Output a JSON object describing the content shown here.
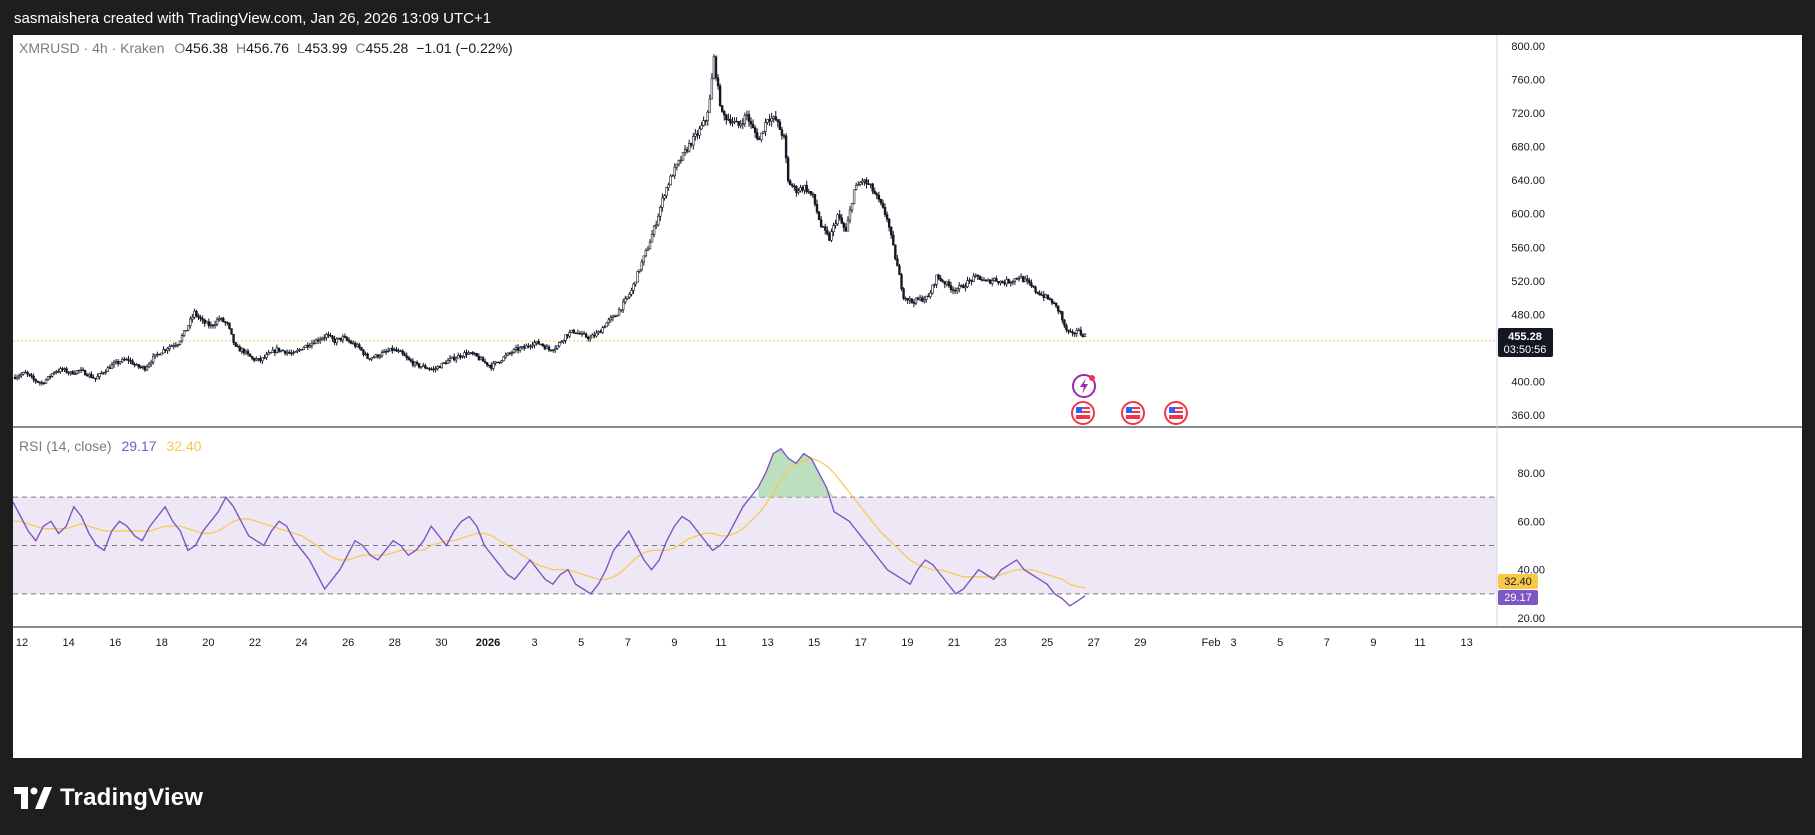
{
  "header": {
    "caption": "sasmaishera created with TradingView.com, Jan 26, 2026 13:09 UTC+1"
  },
  "legend": {
    "symbol": "XMRUSD · 4h · Kraken",
    "o_label": "O",
    "o_value": "456.38",
    "h_label": "H",
    "h_value": "456.76",
    "l_label": "L",
    "l_value": "453.99",
    "c_label": "C",
    "c_value": "455.28",
    "change": "−1.01 (−0.22%)"
  },
  "rsi_legend": {
    "label": "RSI (14, close)",
    "rsi_value": "29.17",
    "ma_value": "32.40"
  },
  "price_badge": {
    "price": "455.28",
    "countdown": "03:50:56"
  },
  "rsi_badges": {
    "ma": "32.40",
    "rsi": "29.17"
  },
  "footer": {
    "brand": "TradingView"
  },
  "colors": {
    "up": "#131722",
    "down": "#131722",
    "rsi_line": "#7e57c2",
    "rsi_ma": "#f7c948",
    "band_fill": "#ede7f6",
    "overbought_fill": "#a5d6a7",
    "price_line": "#f7c948"
  },
  "chart_data": [
    {
      "type": "candlestick",
      "symbol": "XMRUSD",
      "interval": "4h",
      "exchange": "Kraken",
      "y_axis": {
        "ticks": [
          "800.00",
          "760.00",
          "720.00",
          "680.00",
          "640.00",
          "600.00",
          "560.00",
          "520.00",
          "480.00",
          "400.00",
          "360.00"
        ],
        "ylim": [
          350,
          810
        ]
      },
      "x_axis": {
        "ticks": [
          "12",
          "14",
          "16",
          "18",
          "20",
          "22",
          "24",
          "26",
          "28",
          "30",
          "2026",
          "3",
          "5",
          "7",
          "9",
          "11",
          "13",
          "15",
          "17",
          "19",
          "21",
          "23",
          "25",
          "27",
          "29",
          "Feb",
          "3",
          "5",
          "7",
          "9",
          "11",
          "13"
        ]
      },
      "close_path": [
        [
          0,
          405
        ],
        [
          6,
          410
        ],
        [
          10,
          402
        ],
        [
          14,
          398
        ],
        [
          17,
          404
        ],
        [
          20,
          412
        ],
        [
          24,
          414
        ],
        [
          28,
          410
        ],
        [
          32,
          413
        ],
        [
          36,
          409
        ],
        [
          40,
          403
        ],
        [
          44,
          412
        ],
        [
          48,
          419
        ],
        [
          52,
          424
        ],
        [
          56,
          426
        ],
        [
          60,
          418
        ],
        [
          64,
          416
        ],
        [
          68,
          428
        ],
        [
          72,
          436
        ],
        [
          76,
          442
        ],
        [
          80,
          446
        ],
        [
          84,
          462
        ],
        [
          88,
          482
        ],
        [
          92,
          471
        ],
        [
          96,
          466
        ],
        [
          100,
          475
        ],
        [
          104,
          468
        ],
        [
          108,
          440
        ],
        [
          112,
          436
        ],
        [
          116,
          427
        ],
        [
          120,
          425
        ],
        [
          124,
          432
        ],
        [
          128,
          438
        ],
        [
          132,
          436
        ],
        [
          136,
          432
        ],
        [
          140,
          440
        ],
        [
          144,
          445
        ],
        [
          148,
          450
        ],
        [
          152,
          455
        ],
        [
          156,
          448
        ],
        [
          160,
          452
        ],
        [
          164,
          446
        ],
        [
          168,
          440
        ],
        [
          172,
          428
        ],
        [
          176,
          430
        ],
        [
          180,
          434
        ],
        [
          184,
          438
        ],
        [
          188,
          434
        ],
        [
          192,
          425
        ],
        [
          196,
          419
        ],
        [
          200,
          417
        ],
        [
          204,
          414
        ],
        [
          208,
          420
        ],
        [
          212,
          426
        ],
        [
          216,
          430
        ],
        [
          220,
          434
        ],
        [
          224,
          431
        ],
        [
          228,
          424
        ],
        [
          232,
          418
        ],
        [
          236,
          425
        ],
        [
          240,
          432
        ],
        [
          244,
          438
        ],
        [
          248,
          440
        ],
        [
          252,
          446
        ],
        [
          256,
          445
        ],
        [
          260,
          438
        ],
        [
          264,
          442
        ],
        [
          268,
          455
        ],
        [
          272,
          460
        ],
        [
          276,
          455
        ],
        [
          280,
          452
        ],
        [
          284,
          458
        ],
        [
          288,
          470
        ],
        [
          292,
          478
        ],
        [
          296,
          492
        ],
        [
          300,
          508
        ],
        [
          304,
          535
        ],
        [
          308,
          560
        ],
        [
          312,
          590
        ],
        [
          316,
          625
        ],
        [
          320,
          648
        ],
        [
          324,
          665
        ],
        [
          328,
          682
        ],
        [
          332,
          695
        ],
        [
          336,
          712
        ],
        [
          338,
          735
        ],
        [
          340,
          785
        ],
        [
          342,
          748
        ],
        [
          344,
          718
        ],
        [
          348,
          712
        ],
        [
          352,
          705
        ],
        [
          356,
          718
        ],
        [
          358,
          705
        ],
        [
          362,
          688
        ],
        [
          366,
          715
        ],
        [
          370,
          712
        ],
        [
          374,
          690
        ],
        [
          376,
          638
        ],
        [
          380,
          628
        ],
        [
          384,
          632
        ],
        [
          388,
          620
        ],
        [
          392,
          585
        ],
        [
          396,
          570
        ],
        [
          400,
          598
        ],
        [
          404,
          578
        ],
        [
          408,
          628
        ],
        [
          412,
          640
        ],
        [
          416,
          632
        ],
        [
          420,
          615
        ],
        [
          424,
          595
        ],
        [
          428,
          548
        ],
        [
          432,
          502
        ],
        [
          436,
          495
        ],
        [
          440,
          498
        ],
        [
          444,
          500
        ],
        [
          448,
          525
        ],
        [
          452,
          518
        ],
        [
          456,
          510
        ],
        [
          460,
          512
        ],
        [
          464,
          520
        ],
        [
          468,
          525
        ],
        [
          472,
          518
        ],
        [
          476,
          522
        ],
        [
          480,
          518
        ],
        [
          484,
          520
        ],
        [
          488,
          525
        ],
        [
          492,
          518
        ],
        [
          496,
          508
        ],
        [
          500,
          502
        ],
        [
          504,
          495
        ],
        [
          508,
          482
        ],
        [
          510,
          465
        ],
        [
          512,
          458
        ],
        [
          514,
          455
        ],
        [
          516,
          462
        ],
        [
          518,
          457
        ],
        [
          520,
          455.28
        ]
      ]
    },
    {
      "type": "line",
      "name": "RSI (14, close)",
      "ylim": [
        15,
        92
      ],
      "y_axis": {
        "ticks": [
          "80.00",
          "60.00",
          "40.00",
          "20.00"
        ]
      },
      "bands": [
        70,
        50,
        30
      ],
      "series": [
        {
          "name": "RSI",
          "values": [
            68,
            62,
            56,
            52,
            58,
            60,
            55,
            58,
            66,
            62,
            55,
            50,
            48,
            56,
            60,
            58,
            54,
            52,
            58,
            62,
            66,
            60,
            56,
            48,
            50,
            56,
            60,
            64,
            70,
            66,
            60,
            54,
            52,
            50,
            56,
            60,
            58,
            52,
            48,
            44,
            38,
            32,
            36,
            40,
            46,
            52,
            50,
            46,
            44,
            48,
            52,
            50,
            46,
            48,
            52,
            58,
            54,
            50,
            56,
            60,
            62,
            58,
            50,
            46,
            42,
            38,
            36,
            40,
            44,
            40,
            36,
            34,
            38,
            40,
            34,
            32,
            30,
            34,
            40,
            48,
            52,
            56,
            50,
            44,
            40,
            44,
            52,
            58,
            62,
            60,
            56,
            52,
            48,
            50,
            54,
            60,
            66,
            70,
            74,
            80,
            88,
            90,
            86,
            84,
            88,
            86,
            80,
            74,
            64,
            62,
            60,
            56,
            52,
            48,
            44,
            40,
            38,
            36,
            34,
            40,
            44,
            42,
            38,
            34,
            30,
            32,
            36,
            40,
            38,
            36,
            40,
            42,
            44,
            40,
            38,
            36,
            34,
            30,
            28,
            25,
            27,
            29.17
          ]
        },
        {
          "name": "MA",
          "values": [
            60,
            60,
            59,
            58,
            57,
            57,
            57,
            57,
            58,
            59,
            58,
            57,
            56,
            56,
            56,
            56,
            56,
            56,
            56,
            57,
            58,
            58,
            58,
            57,
            56,
            55,
            55,
            56,
            58,
            60,
            61,
            61,
            60,
            59,
            58,
            57,
            56,
            55,
            54,
            52,
            50,
            47,
            45,
            44,
            44,
            45,
            46,
            46,
            46,
            46,
            47,
            48,
            48,
            48,
            48,
            50,
            51,
            52,
            52,
            53,
            54,
            55,
            55,
            54,
            52,
            50,
            48,
            46,
            44,
            42,
            41,
            40,
            40,
            40,
            39,
            38,
            37,
            36,
            36,
            37,
            39,
            42,
            45,
            47,
            48,
            48,
            48,
            49,
            51,
            53,
            54,
            55,
            55,
            54,
            54,
            55,
            57,
            60,
            63,
            67,
            72,
            77,
            81,
            84,
            85,
            86,
            85,
            83,
            80,
            76,
            72,
            68,
            64,
            60,
            56,
            53,
            50,
            47,
            44,
            42,
            41,
            40,
            40,
            39,
            38,
            37,
            37,
            37,
            37,
            37,
            38,
            39,
            40,
            40,
            40,
            39,
            38,
            37,
            36,
            34,
            33,
            32.4
          ]
        }
      ]
    }
  ]
}
